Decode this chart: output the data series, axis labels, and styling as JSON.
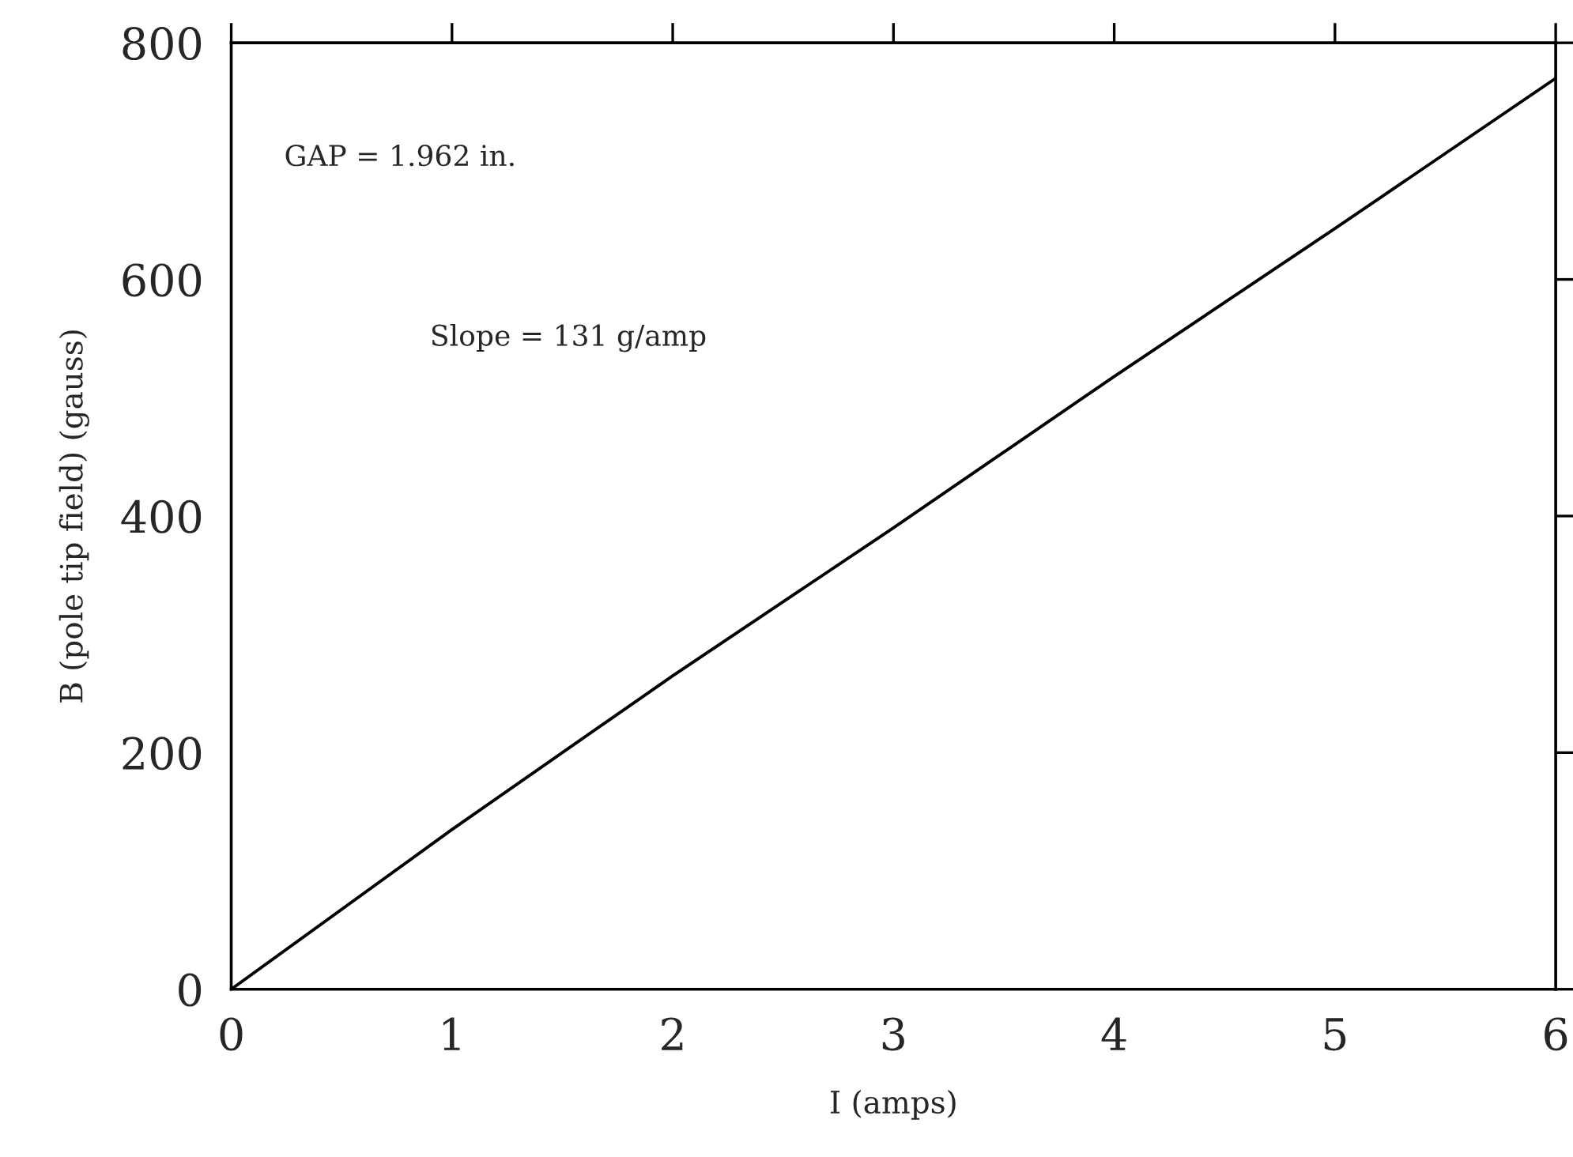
{
  "chart_data": {
    "type": "line",
    "xlabel": "I (amps)",
    "ylabel": "B (pole tip field) (gauss)",
    "x": [
      0,
      1,
      2,
      3,
      4,
      5,
      6
    ],
    "series": [
      {
        "color": "#000000",
        "values": [
          0,
          135,
          265,
          390,
          518,
          643,
          770
        ]
      }
    ],
    "xlim": [
      0,
      6
    ],
    "ylim": [
      0,
      800
    ],
    "xticks": [
      0,
      1,
      2,
      3,
      4,
      5,
      6
    ],
    "yticks": [
      0,
      200,
      400,
      600,
      800
    ],
    "annotations": [
      {
        "text": "GAP = 1.962 in."
      },
      {
        "text": "Slope = 131 g/amp"
      }
    ],
    "grid": false,
    "legend": false,
    "marker": "none",
    "line_style": "solid"
  }
}
